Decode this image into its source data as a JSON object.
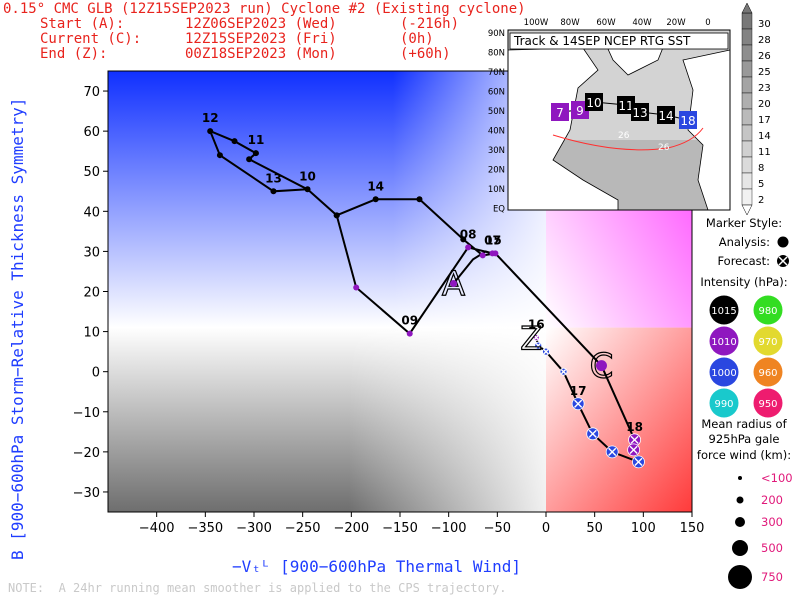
{
  "header": {
    "title": "0.15° CMC GLB (12Z15SEP2023 run) Cyclone #2 (Existing cyclone)",
    "start_label": "Start (A):",
    "start_time": "12Z06SEP2023 (Wed)",
    "start_offset": "(-216h)",
    "current_label": "Current (C):",
    "current_time": "12Z15SEP2023 (Fri)",
    "current_offset": "(0h)",
    "end_label": "End (Z):",
    "end_time": "00Z18SEP2023 (Mon)",
    "end_offset": "(+60h)"
  },
  "note": "NOTE:  A 24hr running mean smoother is applied to the CPS trajectory.",
  "inset": {
    "title": "Track & 14SEP NCEP RTG SST",
    "lon_labels": [
      "100W",
      "80W",
      "60W",
      "40W",
      "20W",
      "0"
    ],
    "lat_labels": [
      "90N",
      "80N",
      "70N",
      "60N",
      "50N",
      "40N",
      "30N",
      "20N",
      "10N",
      "EQ"
    ],
    "sst_labels": [
      "26",
      "26"
    ],
    "track_labels": [
      "7",
      "9",
      "10",
      "11",
      "13",
      "14",
      "18"
    ],
    "colorbar_labels": [
      "30",
      "28",
      "26",
      "25",
      "23",
      "20",
      "17",
      "14",
      "11",
      "8",
      "5",
      "2"
    ]
  },
  "legend": {
    "marker_style": "Marker Style:",
    "analysis": "Analysis:",
    "forecast": "Forecast:",
    "intensity_title": "Intensity (hPa):",
    "intensity": [
      {
        "label": "1015",
        "color": "#000000",
        "text_color": "#ffffff"
      },
      {
        "label": "980",
        "color": "#33dd22",
        "text_color": "#ffffff"
      },
      {
        "label": "1010",
        "color": "#8f17bf",
        "text_color": "#ffffff"
      },
      {
        "label": "970",
        "color": "#e2d92f",
        "text_color": "#ffffff"
      },
      {
        "label": "1000",
        "color": "#2a47e0",
        "text_color": "#ffffff"
      },
      {
        "label": "960",
        "color": "#ef8422",
        "text_color": "#ffffff"
      },
      {
        "label": "990",
        "color": "#19c9cc",
        "text_color": "#ffffff"
      },
      {
        "label": "950",
        "color": "#ee1c6f",
        "text_color": "#ffffff"
      }
    ],
    "radius_title_1": "Mean radius of",
    "radius_title_2": "925hPa gale",
    "radius_title_3": "force wind (km):",
    "radius_sizes": [
      "<100",
      "200",
      "300",
      "500",
      "750"
    ]
  },
  "chart_data": {
    "type": "scatter",
    "title": "0.15° CMC GLB (12Z15SEP2023 run) Cyclone #2 (Existing cyclone)",
    "xlabel": "−Vₜᴸ [900−600hPa Thermal Wind]",
    "ylabel": "B [900−600hPa Storm−Relative Thickness Symmetry]",
    "xlim": [
      -450,
      150
    ],
    "ylim": [
      -35,
      75
    ],
    "xticks": [
      -400,
      -350,
      -300,
      -250,
      -200,
      -150,
      -100,
      -50,
      0,
      50,
      100,
      150
    ],
    "yticks": [
      -30,
      -20,
      -10,
      0,
      10,
      20,
      30,
      40,
      50,
      60,
      70
    ],
    "colors": {
      "axis_text": "#1f3dff",
      "header": "#e8231d",
      "track": "#000000"
    },
    "analysis_track": [
      {
        "x": -95,
        "y": 22,
        "label": "A",
        "color": "#8f17bf"
      },
      {
        "x": -75,
        "y": 28
      },
      {
        "x": -62,
        "y": 30
      },
      {
        "x": -55,
        "y": 29.5,
        "label": "07",
        "color": "#8f17bf"
      },
      {
        "x": -80,
        "y": 31,
        "label": "08",
        "color": "#8f17bf"
      },
      {
        "x": -140,
        "y": 9.5,
        "label": "09",
        "color": "#8f17bf"
      },
      {
        "x": -195,
        "y": 21,
        "color": "#8f17bf"
      },
      {
        "x": -215,
        "y": 39,
        "color": "#000000"
      },
      {
        "x": -245,
        "y": 45.5,
        "label": "10",
        "color": "#000000"
      },
      {
        "x": -305,
        "y": 53,
        "color": "#000000"
      },
      {
        "x": -298,
        "y": 54.5,
        "label": "11",
        "color": "#000000"
      },
      {
        "x": -320,
        "y": 57.5,
        "color": "#000000"
      },
      {
        "x": -345,
        "y": 60,
        "label": "12",
        "color": "#000000"
      },
      {
        "x": -335,
        "y": 54,
        "color": "#000000"
      },
      {
        "x": -280,
        "y": 45,
        "label": "13",
        "color": "#000000"
      },
      {
        "x": -245,
        "y": 45.5
      },
      {
        "x": -215,
        "y": 39,
        "color": "#000000"
      },
      {
        "x": -175,
        "y": 43,
        "label": "14",
        "color": "#000000"
      },
      {
        "x": -130,
        "y": 43,
        "color": "#000000"
      },
      {
        "x": -85,
        "y": 33,
        "color": "#000000"
      },
      {
        "x": -65,
        "y": 29,
        "color": "#8f17bf"
      },
      {
        "x": -52,
        "y": 29.5,
        "label": "15",
        "color": "#8f17bf"
      },
      {
        "x": 57,
        "y": 1.5,
        "label": "C",
        "color": "#8f17bf"
      }
    ],
    "forecast_track": [
      {
        "x": 57,
        "y": 1.5
      },
      {
        "x": 91,
        "y": -17,
        "color": "#8f17bf",
        "label": "18"
      },
      {
        "x": 90,
        "y": -19.5,
        "color": "#8f17bf"
      },
      {
        "x": 95,
        "y": -22.5,
        "color": "#2a47e0",
        "label": "Z"
      },
      {
        "x": 68,
        "y": -20,
        "color": "#2a47e0"
      },
      {
        "x": 48,
        "y": -15.5,
        "color": "#2a47e0"
      },
      {
        "x": 33,
        "y": -8,
        "color": "#2a47e0",
        "label": "17"
      },
      {
        "x": 18,
        "y": 0,
        "color": "#2a47e0"
      },
      {
        "x": 0,
        "y": 5,
        "color": "#2a47e0"
      },
      {
        "x": -8,
        "y": 6.5,
        "color": "#2a47e0"
      },
      {
        "x": -10,
        "y": 8.5,
        "color": "#8f17bf",
        "label": "16"
      }
    ],
    "quadrant_fills": {
      "cold_symmetric": "#ffffff",
      "cold_asymmetric": "#1030ff",
      "warm_symmetric": "#ff3a3a",
      "warm_asymmetric": "#ff33ff"
    }
  }
}
